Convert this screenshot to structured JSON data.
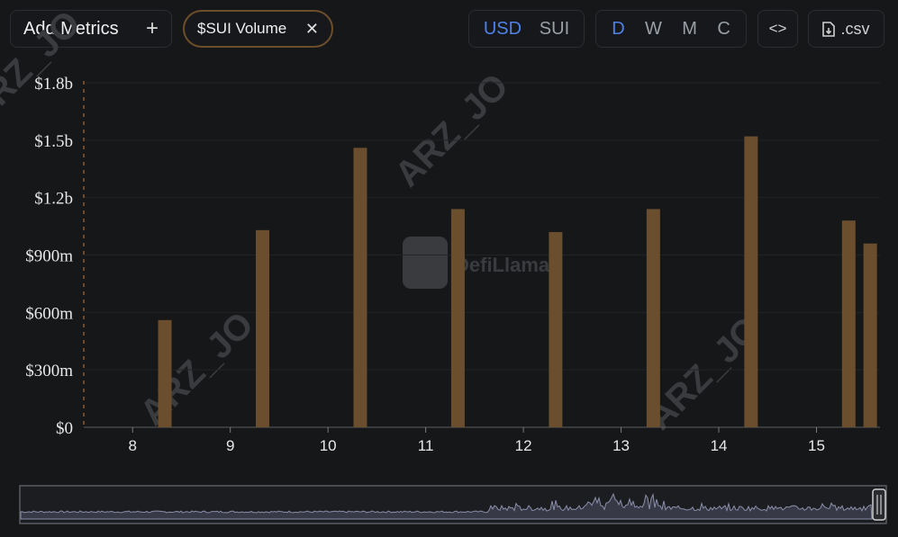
{
  "toolbar": {
    "add_metrics_label": "Add Metrics",
    "metric_chip_label": "$SUI Volume",
    "currency_options": [
      "USD",
      "SUI"
    ],
    "currency_selected": "USD",
    "period_options": [
      "D",
      "W",
      "M",
      "C"
    ],
    "period_selected": "D",
    "embed_label": "<>",
    "csv_label": ".csv"
  },
  "watermarks": {
    "brand": "DefiLlama",
    "user": "ARZ_JO"
  },
  "colors": {
    "bar": "#6b4e2d",
    "background": "#161719",
    "accent": "#4f82e6",
    "chip_border": "#6d4e2a"
  },
  "chart_data": {
    "type": "bar",
    "title": "",
    "xlabel": "",
    "ylabel": "",
    "x_ticks": [
      "8",
      "9",
      "10",
      "11",
      "12",
      "13",
      "14",
      "15"
    ],
    "y_ticks": [
      "$0",
      "$300m",
      "$600m",
      "$900m",
      "$1.2b",
      "$1.5b",
      "$1.8b"
    ],
    "ylim": [
      0,
      1800000000
    ],
    "xlim": [
      7.5,
      15.65
    ],
    "series": [
      {
        "x": [
          8.33,
          9.33,
          10.33,
          11.33,
          12.33,
          13.33,
          14.33,
          15.33,
          15.55
        ],
        "values": [
          560000000,
          1030000000,
          1460000000,
          1140000000,
          1020000000,
          1140000000,
          1520000000,
          1080000000,
          960000000
        ]
      }
    ],
    "grid": true,
    "legend": "none"
  }
}
